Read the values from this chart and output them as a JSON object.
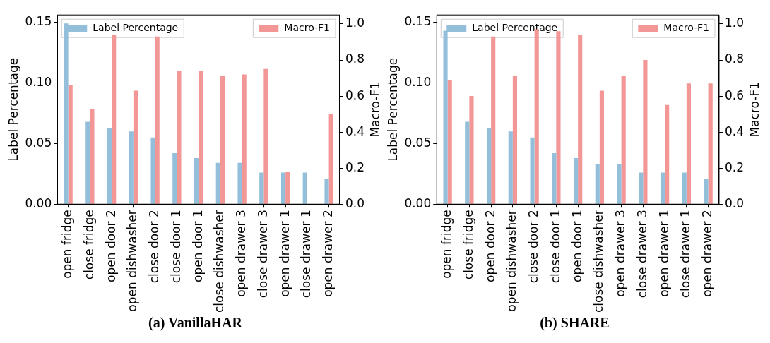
{
  "chart_data": [
    {
      "type": "bar",
      "categories": [
        "open fridge",
        "close fridge",
        "open door 2",
        "open dishwasher",
        "close door 2",
        "close door 1",
        "open door 1",
        "close dishwasher",
        "open drawer 3",
        "close drawer 3",
        "open drawer 1",
        "close drawer 1",
        "open drawer 2"
      ],
      "ylabel": "Label Percentage",
      "y2label": "Macro-F1",
      "ylim": [
        0,
        0.156
      ],
      "yticks": [
        {
          "value": 0,
          "label": "0.00"
        },
        {
          "value": 0.05,
          "label": "0.05"
        },
        {
          "value": 0.1,
          "label": "0.10"
        },
        {
          "value": 0.15,
          "label": "0.15"
        }
      ],
      "y2lim": [
        0,
        1.05
      ],
      "y2ticks": [
        {
          "value": 0,
          "label": "0.0"
        },
        {
          "value": 0.2,
          "label": "0.2"
        },
        {
          "value": 0.4,
          "label": "0.4"
        },
        {
          "value": 0.6,
          "label": "0.6"
        },
        {
          "value": 0.8,
          "label": "0.8"
        },
        {
          "value": 1,
          "label": "1.0"
        }
      ],
      "series": [
        {
          "name": "Label Percentage",
          "color": "#93bfda",
          "values": [
            0.149,
            0.068,
            0.063,
            0.06,
            0.055,
            0.042,
            0.038,
            0.034,
            0.034,
            0.026,
            0.026,
            0.026,
            0.021
          ]
        },
        {
          "name": "Macro-F1",
          "color": "#f29696",
          "axis": "y2",
          "values": [
            0.66,
            0.53,
            0.94,
            0.63,
            0.93,
            0.74,
            0.74,
            0.71,
            0.72,
            0.75,
            0.18,
            0,
            0.5
          ]
        }
      ],
      "legend": "top",
      "grid": false,
      "annotations": [
        "(a) VanillaHAR"
      ]
    },
    {
      "type": "bar",
      "categories": [
        "open fridge",
        "close fridge",
        "open door 2",
        "open dishwasher",
        "close door 2",
        "close door 1",
        "open door 1",
        "close dishwasher",
        "open drawer 3",
        "close drawer 3",
        "open drawer 1",
        "close drawer 1",
        "open drawer 2"
      ],
      "ylabel": "Label Percentage",
      "y2label": "Macro-F1",
      "ylim": [
        0,
        0.156
      ],
      "yticks": [
        {
          "value": 0,
          "label": "0.00"
        },
        {
          "value": 0.05,
          "label": "0.05"
        },
        {
          "value": 0.1,
          "label": "0.10"
        },
        {
          "value": 0.15,
          "label": "0.15"
        }
      ],
      "y2lim": [
        0,
        1.05
      ],
      "y2ticks": [
        {
          "value": 0,
          "label": "0.0"
        },
        {
          "value": 0.2,
          "label": "0.2"
        },
        {
          "value": 0.4,
          "label": "0.4"
        },
        {
          "value": 0.6,
          "label": "0.6"
        },
        {
          "value": 0.8,
          "label": "0.8"
        },
        {
          "value": 1,
          "label": "1.0"
        }
      ],
      "series": [
        {
          "name": "Label Percentage",
          "color": "#93bfda",
          "values": [
            0.143,
            0.068,
            0.063,
            0.06,
            0.055,
            0.042,
            0.038,
            0.033,
            0.033,
            0.026,
            0.026,
            0.026,
            0.021
          ]
        },
        {
          "name": "Macro-F1",
          "color": "#f29696",
          "axis": "y2",
          "values": [
            0.69,
            0.6,
            0.93,
            0.71,
            0.97,
            0.96,
            0.94,
            0.63,
            0.71,
            0.8,
            0.55,
            0.67,
            0.67
          ]
        }
      ],
      "legend": "top",
      "grid": false,
      "annotations": [
        "(b) SHARE"
      ]
    }
  ]
}
